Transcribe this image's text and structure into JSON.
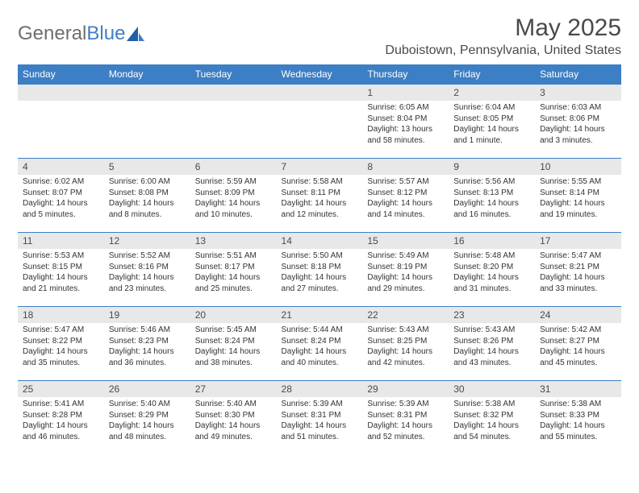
{
  "logo": {
    "part1": "General",
    "part2": "Blue"
  },
  "title": "May 2025",
  "location": "Duboistown, Pennsylvania, United States",
  "day_headers": [
    "Sunday",
    "Monday",
    "Tuesday",
    "Wednesday",
    "Thursday",
    "Friday",
    "Saturday"
  ],
  "colors": {
    "header_bg": "#3d7fc4",
    "daynum_bg": "#e8e8e8",
    "border": "#3d7fc4"
  },
  "weeks": [
    [
      {
        "day": "",
        "sunrise": "",
        "sunset": "",
        "daylight": ""
      },
      {
        "day": "",
        "sunrise": "",
        "sunset": "",
        "daylight": ""
      },
      {
        "day": "",
        "sunrise": "",
        "sunset": "",
        "daylight": ""
      },
      {
        "day": "",
        "sunrise": "",
        "sunset": "",
        "daylight": ""
      },
      {
        "day": "1",
        "sunrise": "Sunrise: 6:05 AM",
        "sunset": "Sunset: 8:04 PM",
        "daylight": "Daylight: 13 hours and 58 minutes."
      },
      {
        "day": "2",
        "sunrise": "Sunrise: 6:04 AM",
        "sunset": "Sunset: 8:05 PM",
        "daylight": "Daylight: 14 hours and 1 minute."
      },
      {
        "day": "3",
        "sunrise": "Sunrise: 6:03 AM",
        "sunset": "Sunset: 8:06 PM",
        "daylight": "Daylight: 14 hours and 3 minutes."
      }
    ],
    [
      {
        "day": "4",
        "sunrise": "Sunrise: 6:02 AM",
        "sunset": "Sunset: 8:07 PM",
        "daylight": "Daylight: 14 hours and 5 minutes."
      },
      {
        "day": "5",
        "sunrise": "Sunrise: 6:00 AM",
        "sunset": "Sunset: 8:08 PM",
        "daylight": "Daylight: 14 hours and 8 minutes."
      },
      {
        "day": "6",
        "sunrise": "Sunrise: 5:59 AM",
        "sunset": "Sunset: 8:09 PM",
        "daylight": "Daylight: 14 hours and 10 minutes."
      },
      {
        "day": "7",
        "sunrise": "Sunrise: 5:58 AM",
        "sunset": "Sunset: 8:11 PM",
        "daylight": "Daylight: 14 hours and 12 minutes."
      },
      {
        "day": "8",
        "sunrise": "Sunrise: 5:57 AM",
        "sunset": "Sunset: 8:12 PM",
        "daylight": "Daylight: 14 hours and 14 minutes."
      },
      {
        "day": "9",
        "sunrise": "Sunrise: 5:56 AM",
        "sunset": "Sunset: 8:13 PM",
        "daylight": "Daylight: 14 hours and 16 minutes."
      },
      {
        "day": "10",
        "sunrise": "Sunrise: 5:55 AM",
        "sunset": "Sunset: 8:14 PM",
        "daylight": "Daylight: 14 hours and 19 minutes."
      }
    ],
    [
      {
        "day": "11",
        "sunrise": "Sunrise: 5:53 AM",
        "sunset": "Sunset: 8:15 PM",
        "daylight": "Daylight: 14 hours and 21 minutes."
      },
      {
        "day": "12",
        "sunrise": "Sunrise: 5:52 AM",
        "sunset": "Sunset: 8:16 PM",
        "daylight": "Daylight: 14 hours and 23 minutes."
      },
      {
        "day": "13",
        "sunrise": "Sunrise: 5:51 AM",
        "sunset": "Sunset: 8:17 PM",
        "daylight": "Daylight: 14 hours and 25 minutes."
      },
      {
        "day": "14",
        "sunrise": "Sunrise: 5:50 AM",
        "sunset": "Sunset: 8:18 PM",
        "daylight": "Daylight: 14 hours and 27 minutes."
      },
      {
        "day": "15",
        "sunrise": "Sunrise: 5:49 AM",
        "sunset": "Sunset: 8:19 PM",
        "daylight": "Daylight: 14 hours and 29 minutes."
      },
      {
        "day": "16",
        "sunrise": "Sunrise: 5:48 AM",
        "sunset": "Sunset: 8:20 PM",
        "daylight": "Daylight: 14 hours and 31 minutes."
      },
      {
        "day": "17",
        "sunrise": "Sunrise: 5:47 AM",
        "sunset": "Sunset: 8:21 PM",
        "daylight": "Daylight: 14 hours and 33 minutes."
      }
    ],
    [
      {
        "day": "18",
        "sunrise": "Sunrise: 5:47 AM",
        "sunset": "Sunset: 8:22 PM",
        "daylight": "Daylight: 14 hours and 35 minutes."
      },
      {
        "day": "19",
        "sunrise": "Sunrise: 5:46 AM",
        "sunset": "Sunset: 8:23 PM",
        "daylight": "Daylight: 14 hours and 36 minutes."
      },
      {
        "day": "20",
        "sunrise": "Sunrise: 5:45 AM",
        "sunset": "Sunset: 8:24 PM",
        "daylight": "Daylight: 14 hours and 38 minutes."
      },
      {
        "day": "21",
        "sunrise": "Sunrise: 5:44 AM",
        "sunset": "Sunset: 8:24 PM",
        "daylight": "Daylight: 14 hours and 40 minutes."
      },
      {
        "day": "22",
        "sunrise": "Sunrise: 5:43 AM",
        "sunset": "Sunset: 8:25 PM",
        "daylight": "Daylight: 14 hours and 42 minutes."
      },
      {
        "day": "23",
        "sunrise": "Sunrise: 5:43 AM",
        "sunset": "Sunset: 8:26 PM",
        "daylight": "Daylight: 14 hours and 43 minutes."
      },
      {
        "day": "24",
        "sunrise": "Sunrise: 5:42 AM",
        "sunset": "Sunset: 8:27 PM",
        "daylight": "Daylight: 14 hours and 45 minutes."
      }
    ],
    [
      {
        "day": "25",
        "sunrise": "Sunrise: 5:41 AM",
        "sunset": "Sunset: 8:28 PM",
        "daylight": "Daylight: 14 hours and 46 minutes."
      },
      {
        "day": "26",
        "sunrise": "Sunrise: 5:40 AM",
        "sunset": "Sunset: 8:29 PM",
        "daylight": "Daylight: 14 hours and 48 minutes."
      },
      {
        "day": "27",
        "sunrise": "Sunrise: 5:40 AM",
        "sunset": "Sunset: 8:30 PM",
        "daylight": "Daylight: 14 hours and 49 minutes."
      },
      {
        "day": "28",
        "sunrise": "Sunrise: 5:39 AM",
        "sunset": "Sunset: 8:31 PM",
        "daylight": "Daylight: 14 hours and 51 minutes."
      },
      {
        "day": "29",
        "sunrise": "Sunrise: 5:39 AM",
        "sunset": "Sunset: 8:31 PM",
        "daylight": "Daylight: 14 hours and 52 minutes."
      },
      {
        "day": "30",
        "sunrise": "Sunrise: 5:38 AM",
        "sunset": "Sunset: 8:32 PM",
        "daylight": "Daylight: 14 hours and 54 minutes."
      },
      {
        "day": "31",
        "sunrise": "Sunrise: 5:38 AM",
        "sunset": "Sunset: 8:33 PM",
        "daylight": "Daylight: 14 hours and 55 minutes."
      }
    ]
  ]
}
